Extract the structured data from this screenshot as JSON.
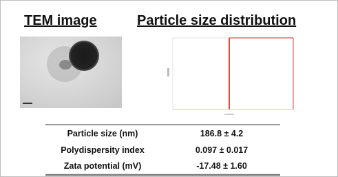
{
  "headers": {
    "tem": "TEM image",
    "distribution": "Particle size distribution"
  },
  "table": {
    "rows": [
      [
        "Particle size (nm)",
        "186.8 ± 4.2"
      ],
      [
        "Polydispersity index",
        "0.097 ± 0.017"
      ],
      [
        "Zata potential (mV)",
        "-17.48 ± 1.60"
      ]
    ]
  }
}
